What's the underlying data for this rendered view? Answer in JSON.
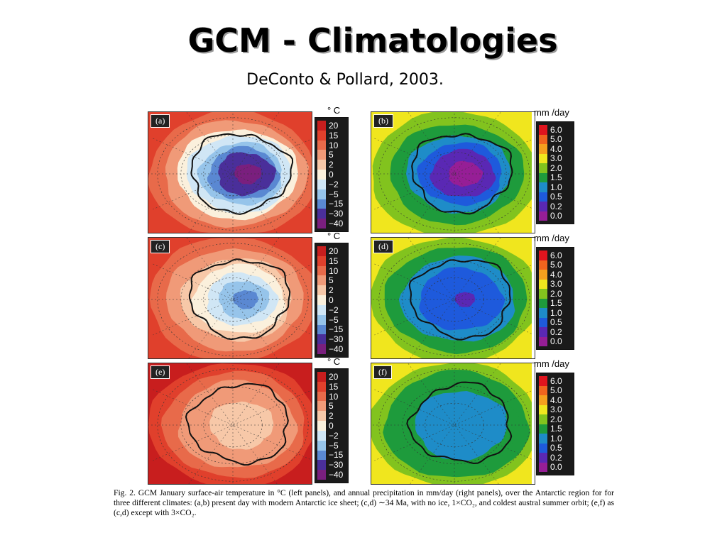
{
  "title": "GCM - Climatologies",
  "subtitle": "DeConto & Pollard, 2003.",
  "panels": [
    {
      "label": "(a)",
      "type": "temperature",
      "scheme": "present"
    },
    {
      "label": "(b)",
      "type": "precip",
      "scheme": "present"
    },
    {
      "label": "(c)",
      "type": "temperature",
      "scheme": "noice"
    },
    {
      "label": "(d)",
      "type": "precip",
      "scheme": "noice"
    },
    {
      "label": "(e)",
      "type": "temperature",
      "scheme": "warm"
    },
    {
      "label": "(f)",
      "type": "precip",
      "scheme": "warm"
    }
  ],
  "temp_colorbar": {
    "unit_a": "° C",
    "unit": "° C",
    "labels": [
      "20",
      "15",
      "10",
      "5",
      "2",
      "0",
      "−2",
      "−5",
      "−15",
      "−30",
      "−40"
    ],
    "colors": [
      "#c81e1e",
      "#e0402c",
      "#e86a4a",
      "#f09a78",
      "#f7c8a8",
      "#fbf0dc",
      "#d0e6f5",
      "#96c4ea",
      "#5a88d2",
      "#4a2f9a",
      "#7a1f7e"
    ]
  },
  "precip_colorbar": {
    "unit": "mm /day",
    "labels": [
      "6.0",
      "5.0",
      "4.0",
      "3.0",
      "2.0",
      "1.5",
      "1.0",
      "0.5",
      "0.2",
      "0.0"
    ],
    "colors": [
      "#e0141e",
      "#f0641e",
      "#f5a01e",
      "#f0e61e",
      "#82c31e",
      "#1e9b3c",
      "#1e8cc8",
      "#1e5adc",
      "#5a28b4",
      "#961e96"
    ]
  },
  "caption": "Fig. 2. GCM January surface-air temperature in °C (left panels), and annual precipitation in mm/day (right panels), over the Antarctic region for for three different climates: (a,b) present day with modern Antarctic ice sheet; (c,d) ∼34 Ma, with no ice, 1×CO₂, and coldest austral summer orbit; (e,f) as (c,d) except with 3×CO₂."
}
